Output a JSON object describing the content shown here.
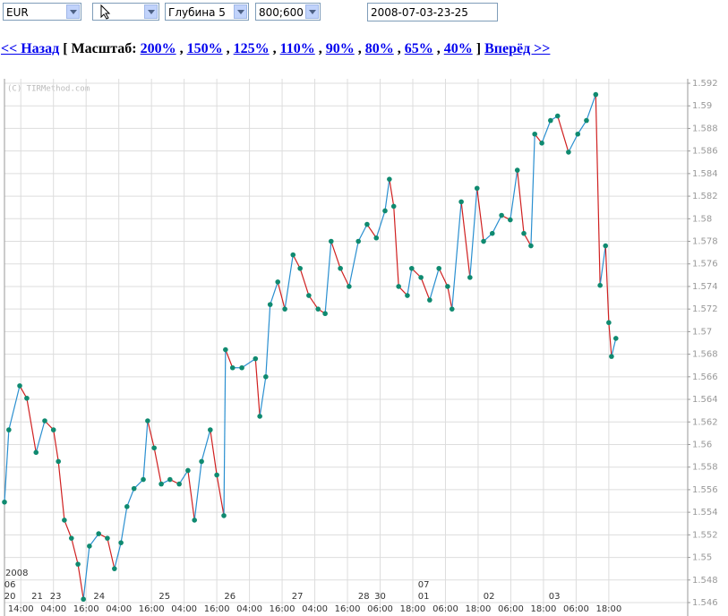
{
  "controls": {
    "instrument": "EUR",
    "depth": "Глубина 5",
    "size": "800;600",
    "datetime": "2008-07-03-23-25"
  },
  "nav": {
    "back": "<< Назад",
    "scale_label": "[ Масштаб:",
    "scales": [
      "200%",
      "150%",
      "125%",
      "110%",
      "90%",
      "80%",
      "65%",
      "40%"
    ],
    "separator": ",",
    "close": "]",
    "forward": "Вперёд >>"
  },
  "chart_data": {
    "type": "line",
    "watermark": "(C) TIRMethod.com",
    "up_color": "#2a8fd0",
    "down_color": "#d02020",
    "marker_color": "#0f8a70",
    "grid": true,
    "xlim": [
      0,
      125
    ],
    "ylim": [
      1.546,
      1.592
    ],
    "yticks": [
      1.546,
      1.548,
      1.55,
      1.552,
      1.554,
      1.556,
      1.558,
      1.56,
      1.562,
      1.564,
      1.566,
      1.568,
      1.57,
      1.572,
      1.574,
      1.576,
      1.578,
      1.58,
      1.582,
      1.584,
      1.586,
      1.588,
      1.59,
      1.592
    ],
    "xticks": [
      {
        "value": 3,
        "label": "14:00"
      },
      {
        "value": 9,
        "label": "04:00"
      },
      {
        "value": 15,
        "label": "16:00"
      },
      {
        "value": 21,
        "label": "04:00"
      },
      {
        "value": 27,
        "label": "16:00"
      },
      {
        "value": 33,
        "label": "04:00"
      },
      {
        "value": 39,
        "label": "16:00"
      },
      {
        "value": 45,
        "label": "04:00"
      },
      {
        "value": 51,
        "label": "16:00"
      },
      {
        "value": 57,
        "label": "04:00"
      },
      {
        "value": 63,
        "label": "16:00"
      },
      {
        "value": 69,
        "label": "06:00"
      },
      {
        "value": 75,
        "label": "18:00"
      },
      {
        "value": 81,
        "label": "06:00"
      },
      {
        "value": 87,
        "label": "18:00"
      },
      {
        "value": 93,
        "label": "06:00"
      },
      {
        "value": 99,
        "label": "18:00"
      },
      {
        "value": 105,
        "label": "06:00"
      },
      {
        "value": 111,
        "label": "18:00"
      }
    ],
    "date_labels": [
      {
        "value": 1,
        "label": "20"
      },
      {
        "value": 6,
        "label": "21"
      },
      {
        "value": 9.4,
        "label": "23"
      },
      {
        "value": 17.4,
        "label": "24"
      },
      {
        "value": 29.4,
        "label": "25"
      },
      {
        "value": 41.4,
        "label": "26"
      },
      {
        "value": 53.8,
        "label": "27"
      },
      {
        "value": 66,
        "label": "28"
      },
      {
        "value": 69,
        "label": "30"
      },
      {
        "value": 77,
        "label": "01"
      },
      {
        "value": 89,
        "label": "02"
      },
      {
        "value": 101,
        "label": "03"
      }
    ],
    "month_labels": [
      {
        "value": 1,
        "label": "06"
      },
      {
        "value": 77,
        "label": "07"
      }
    ],
    "year_label": "2008",
    "x": [
      0,
      0.8,
      2.8,
      4.1,
      5.8,
      7.4,
      9.0,
      9.9,
      11.0,
      12.3,
      13.5,
      14.5,
      15.6,
      17.3,
      18.9,
      20.2,
      21.4,
      22.5,
      23.8,
      25.5,
      26.3,
      27.5,
      28.8,
      30.4,
      32.1,
      33.7,
      34.9,
      36.2,
      37.8,
      39.0,
      40.3,
      40.6,
      41.9,
      43.6,
      46.1,
      46.9,
      48.0,
      48.8,
      50.2,
      51.5,
      53.0,
      54.3,
      55.9,
      57.6,
      58.9,
      60.0,
      61.7,
      63.3,
      65.0,
      66.6,
      68.3,
      69.9,
      70.7,
      71.5,
      72.4,
      74.0,
      74.8,
      76.5,
      78.1,
      79.8,
      81.4,
      82.2,
      83.9,
      85.5,
      86.8,
      88.0,
      89.6,
      91.3,
      92.9,
      94.2,
      95.4,
      96.7,
      97.4,
      98.7,
      100.3,
      101.6,
      103.6,
      105.3,
      106.9,
      108.6,
      109.4,
      110.4,
      111.0,
      111.5,
      112.3
    ],
    "values": [
      1.5549,
      1.5613,
      1.5652,
      1.5641,
      1.5593,
      1.5621,
      1.5613,
      1.5585,
      1.5533,
      1.5517,
      1.5494,
      1.5463,
      1.551,
      1.5521,
      1.5517,
      1.549,
      1.5513,
      1.5545,
      1.5561,
      1.5569,
      1.5621,
      1.5597,
      1.5565,
      1.5569,
      1.5565,
      1.5577,
      1.5533,
      1.5585,
      1.5613,
      1.5573,
      1.5537,
      1.5684,
      1.5668,
      1.5668,
      1.5676,
      1.5625,
      1.566,
      1.5724,
      1.5744,
      1.572,
      1.5768,
      1.5756,
      1.5732,
      1.572,
      1.5716,
      1.578,
      1.5756,
      1.574,
      1.578,
      1.5795,
      1.5783,
      1.5807,
      1.5835,
      1.5811,
      1.574,
      1.5732,
      1.5756,
      1.5748,
      1.5728,
      1.5756,
      1.574,
      1.572,
      1.5815,
      1.5748,
      1.5827,
      1.578,
      1.5787,
      1.5803,
      1.5799,
      1.5843,
      1.5787,
      1.5776,
      1.5875,
      1.5867,
      1.5887,
      1.5891,
      1.5859,
      1.5875,
      1.5887,
      1.591,
      1.5741,
      1.5776,
      1.5708,
      1.5678,
      1.5694
    ]
  }
}
